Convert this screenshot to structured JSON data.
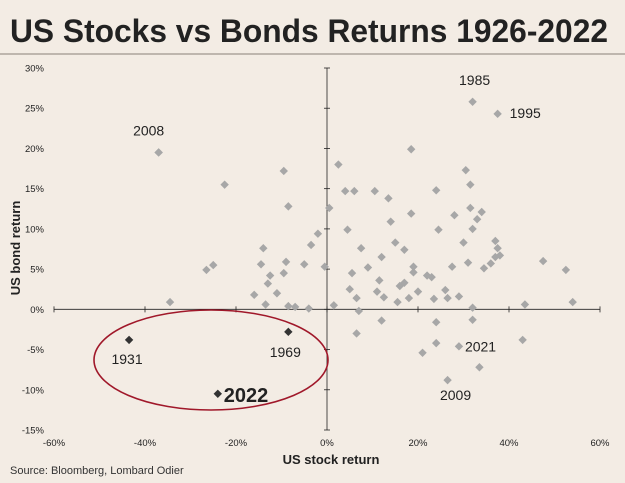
{
  "chart_data": {
    "type": "scatter",
    "title": "US Stocks vs Bonds Returns 1926-2022",
    "xlabel": "US stock return",
    "ylabel": "US bond return",
    "source": "Source: Bloomberg, Lombard Odier",
    "xlim": [
      -60,
      60
    ],
    "ylim": [
      -15,
      30
    ],
    "x_ticks": [
      "-60%",
      "-40%",
      "-20%",
      "0%",
      "20%",
      "40%",
      "60%"
    ],
    "y_ticks": [
      "30%",
      "25%",
      "20%",
      "15%",
      "10%",
      "5%",
      "0%",
      "-5%",
      "-10%",
      "-15%"
    ],
    "colors": {
      "background": "#f3ece4",
      "points": "#a7a7a7",
      "highlight": "#333333",
      "ellipse": "#a0182a"
    },
    "series": [
      {
        "points": [
          [
            -37,
            19.5
          ],
          [
            -34.5,
            0.9
          ],
          [
            -26.5,
            4.9
          ],
          [
            -25,
            5.5
          ],
          [
            -22.5,
            15.5
          ],
          [
            -16,
            1.8
          ],
          [
            -14,
            7.6
          ],
          [
            -14.5,
            5.6
          ],
          [
            -13,
            3.2
          ],
          [
            -12.5,
            4.2
          ],
          [
            -13.5,
            0.6
          ],
          [
            -11,
            2
          ],
          [
            -9.5,
            17.2
          ],
          [
            -9,
            5.9
          ],
          [
            -8.5,
            12.8
          ],
          [
            -8.5,
            0.4
          ],
          [
            -7,
            0.3
          ],
          [
            -9.5,
            4.5
          ],
          [
            -5,
            5.6
          ],
          [
            -4,
            0.1
          ],
          [
            -3.5,
            8
          ],
          [
            -2,
            9.4
          ],
          [
            -0.5,
            5.3
          ],
          [
            0.5,
            12.6
          ],
          [
            1.5,
            0.5
          ],
          [
            2.5,
            18
          ],
          [
            4,
            14.7
          ],
          [
            4.5,
            9.9
          ],
          [
            5.5,
            4.5
          ],
          [
            5,
            2.5
          ],
          [
            6,
            14.7
          ],
          [
            6.5,
            1.4
          ],
          [
            6.5,
            -3
          ],
          [
            7,
            -0.2
          ],
          [
            7.5,
            7.6
          ],
          [
            9,
            5.2
          ],
          [
            10.5,
            14.7
          ],
          [
            11,
            2.2
          ],
          [
            11.5,
            3.6
          ],
          [
            12,
            6.5
          ],
          [
            12,
            -1.4
          ],
          [
            12.5,
            1.5
          ],
          [
            13.5,
            13.8
          ],
          [
            14,
            10.9
          ],
          [
            15,
            8.3
          ],
          [
            15.5,
            0.9
          ],
          [
            16,
            2.9
          ],
          [
            17,
            3.3
          ],
          [
            17,
            7.4
          ],
          [
            18,
            1.4
          ],
          [
            18.5,
            11.9
          ],
          [
            18.5,
            19.9
          ],
          [
            19,
            4.6
          ],
          [
            19,
            5.3
          ],
          [
            20,
            2.2
          ],
          [
            21,
            -5.4
          ],
          [
            22,
            4.2
          ],
          [
            23,
            4
          ],
          [
            23.5,
            1.3
          ],
          [
            24,
            -4.2
          ],
          [
            24,
            -1.6
          ],
          [
            24,
            14.8
          ],
          [
            24.5,
            9.9
          ],
          [
            26,
            2.4
          ],
          [
            26.5,
            1.4
          ],
          [
            27.5,
            5.3
          ],
          [
            28,
            11.7
          ],
          [
            29,
            1.6
          ],
          [
            30,
            8.3
          ],
          [
            30.5,
            17.3
          ],
          [
            31,
            5.8
          ],
          [
            31.5,
            15.5
          ],
          [
            31.5,
            12.6
          ],
          [
            32,
            0.2
          ],
          [
            32,
            10
          ],
          [
            32,
            -1.3
          ],
          [
            33,
            11.2
          ],
          [
            33.5,
            -7.2
          ],
          [
            34,
            12.1
          ],
          [
            34.5,
            5.1
          ],
          [
            36,
            5.7
          ],
          [
            37,
            6.5
          ],
          [
            37.5,
            7.6
          ],
          [
            38,
            6.7
          ],
          [
            37,
            8.5
          ],
          [
            47.5,
            6
          ],
          [
            43,
            -3.8
          ],
          [
            43.5,
            0.6
          ],
          [
            52.5,
            4.9
          ],
          [
            54,
            0.9
          ]
        ]
      }
    ],
    "labeled_points": [
      {
        "label": "1985",
        "x": 32,
        "y": 25.8
      },
      {
        "label": "1995",
        "x": 37.5,
        "y": 24.3
      },
      {
        "label": "2008",
        "x": -37,
        "y": 19.5
      },
      {
        "label": "2021",
        "x": 29,
        "y": -4.6
      },
      {
        "label": "2009",
        "x": 26.5,
        "y": -8.8
      }
    ],
    "highlighted_points": [
      {
        "label": "1931",
        "x": -43.5,
        "y": -3.8
      },
      {
        "label": "1969",
        "x": -8.5,
        "y": -2.8
      },
      {
        "label": "2022",
        "x": -24,
        "y": -10.5
      }
    ]
  }
}
